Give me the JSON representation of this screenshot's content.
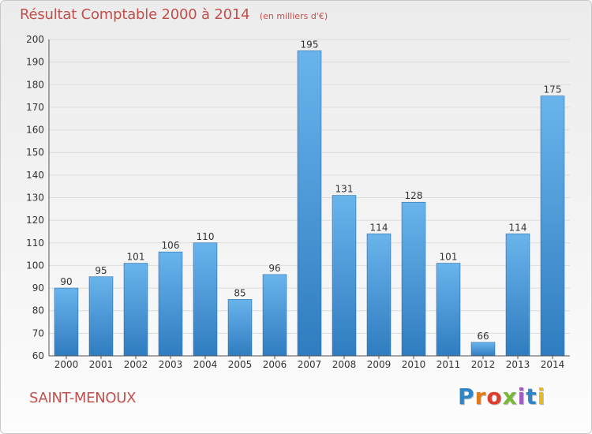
{
  "header": {
    "title": "Résultat Comptable 2000 à 2014",
    "subtitle": "(en milliers d'€)"
  },
  "commune": "SAINT-MENOUX",
  "logo": {
    "text": "Proxiti",
    "colors": [
      "#2e86c8",
      "#e07b1a",
      "#e03c2c",
      "#7ab83a",
      "#a05cc0",
      "#2e86c8",
      "#e8b820"
    ]
  },
  "colors": {
    "bar_top": "#6ab4ec",
    "bar_bottom": "#2f7cc0",
    "accent": "#c0504d",
    "grid": "#dcdcdc"
  },
  "chart_data": {
    "type": "bar",
    "title": "Résultat Comptable 2000 à 2014",
    "subtitle": "(en milliers d'€)",
    "categories": [
      "2000",
      "2001",
      "2002",
      "2003",
      "2004",
      "2005",
      "2006",
      "2007",
      "2008",
      "2009",
      "2010",
      "2011",
      "2012",
      "2013",
      "2014"
    ],
    "values": [
      90,
      95,
      101,
      106,
      110,
      85,
      96,
      195,
      131,
      114,
      128,
      101,
      66,
      114,
      175
    ],
    "ylim": [
      60,
      200
    ],
    "yticks": [
      60,
      70,
      80,
      90,
      100,
      110,
      120,
      130,
      140,
      150,
      160,
      170,
      180,
      190,
      200
    ],
    "grid": true,
    "data_labels": true
  }
}
